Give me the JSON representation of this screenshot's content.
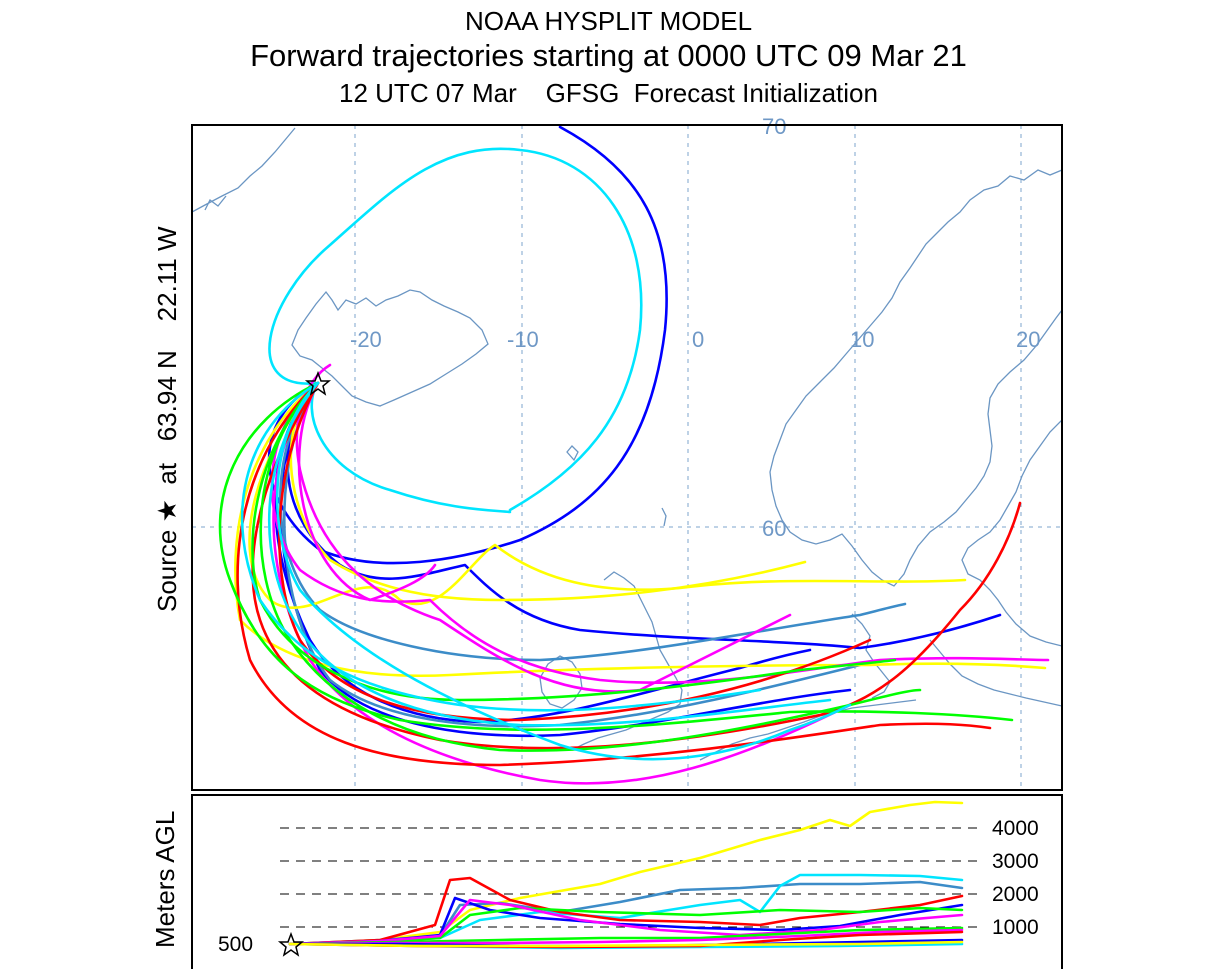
{
  "header": {
    "model": "NOAA HYSPLIT MODEL",
    "run": "Forward trajectories starting at 0000 UTC 09 Mar 21",
    "init": "12 UTC 07 Mar    GFSG  Forecast Initialization"
  },
  "side_labels": {
    "source": "Source ★  at   63.94 N    22.11 W",
    "height_axis": "Meters AGL"
  },
  "map": {
    "longitude_labels": [
      "-20",
      "-10",
      "0",
      "10",
      "20"
    ],
    "latitude_labels": [
      "70",
      "60"
    ],
    "source_marker": "star-icon",
    "trajectory_colors": [
      "#ff0000",
      "#0000ff",
      "#00ff00",
      "#00e5ff",
      "#ff00ff",
      "#ffff00",
      "#3c8cc8"
    ]
  },
  "height_panel": {
    "levels": [
      "4000",
      "3000",
      "2000",
      "1000"
    ],
    "start_level": "500"
  }
}
